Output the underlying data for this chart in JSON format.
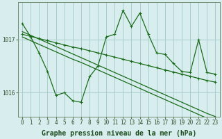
{
  "xlabel": "Graphe pression niveau de la mer (hPa)",
  "bg_color": "#d8eeee",
  "grid_color": "#aacccc",
  "line_color": "#1a6b1a",
  "x": [
    0,
    1,
    2,
    3,
    4,
    5,
    6,
    7,
    8,
    9,
    10,
    11,
    12,
    13,
    14,
    15,
    16,
    17,
    18,
    19,
    20,
    21,
    22,
    23
  ],
  "y_line1": [
    1017.15,
    1017.08,
    1017.01,
    1016.94,
    1016.87,
    1016.8,
    1016.73,
    1016.66,
    1016.59,
    1016.52,
    1016.45,
    1016.38,
    1016.31,
    1016.24,
    1016.17,
    1016.1,
    1016.03,
    1015.96,
    1015.89,
    1015.82,
    1015.75,
    1015.68,
    1015.61,
    1015.55
  ],
  "y_line2": [
    1017.05,
    1016.98,
    1016.91,
    1016.84,
    1016.77,
    1016.7,
    1016.63,
    1016.57,
    1016.5,
    1016.43,
    1016.36,
    1016.29,
    1016.22,
    1016.15,
    1016.08,
    1016.01,
    1015.94,
    1015.87,
    1015.8,
    1015.73,
    1015.66,
    1015.59,
    1015.52,
    1015.46
  ],
  "y_jagged": [
    1017.3,
    1017.05,
    1016.75,
    1016.4,
    1015.95,
    1016.0,
    1015.85,
    1015.82,
    1016.3,
    1016.5,
    1017.05,
    1017.1,
    1017.55,
    1017.25,
    1017.5,
    1017.1,
    1016.75,
    1016.72,
    1016.55,
    1016.4,
    1016.38,
    1017.0,
    1016.38,
    1016.35
  ],
  "y_smooth": [
    1017.1,
    1017.06,
    1017.02,
    1016.98,
    1016.94,
    1016.9,
    1016.86,
    1016.83,
    1016.79,
    1016.75,
    1016.71,
    1016.67,
    1016.63,
    1016.59,
    1016.55,
    1016.51,
    1016.47,
    1016.43,
    1016.39,
    1016.35,
    1016.31,
    1016.27,
    1016.23,
    1016.2
  ],
  "ylim": [
    1015.55,
    1017.7
  ],
  "yticks": [
    1016,
    1017
  ],
  "xticks": [
    0,
    1,
    2,
    3,
    4,
    5,
    6,
    7,
    8,
    9,
    10,
    11,
    12,
    13,
    14,
    15,
    16,
    17,
    18,
    19,
    20,
    21,
    22,
    23
  ],
  "tick_fontsize": 5.5,
  "label_fontsize": 7.0,
  "linewidth": 0.9,
  "markersize": 2.8
}
